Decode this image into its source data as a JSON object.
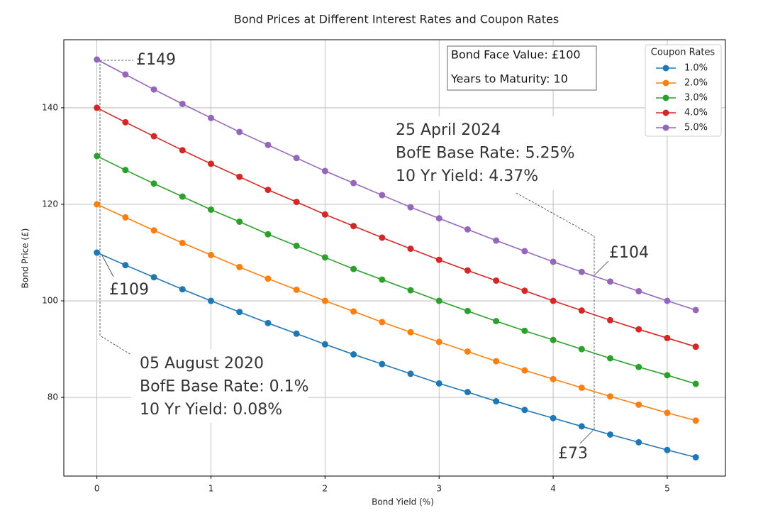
{
  "chart_data": {
    "type": "line",
    "title": "Bond Prices at Different Interest Rates and Coupon Rates",
    "xlabel": "Bond Yield  (%)",
    "ylabel": "Bond Price (£)",
    "x": [
      0,
      0.25,
      0.5,
      0.75,
      1,
      1.25,
      1.5,
      1.75,
      2,
      2.25,
      2.5,
      2.75,
      3,
      3.25,
      3.5,
      3.75,
      4,
      4.25,
      4.5,
      4.75,
      5,
      5.25
    ],
    "series": [
      {
        "name": "1.0%",
        "color": "#1f77b4",
        "values": [
          110,
          107.4,
          104.9,
          102.4,
          100.0,
          97.7,
          95.4,
          93.2,
          91.0,
          88.9,
          86.9,
          84.9,
          82.9,
          81.1,
          79.2,
          77.4,
          75.7,
          74.0,
          72.3,
          70.7,
          69.1,
          67.6
        ]
      },
      {
        "name": "2.0%",
        "color": "#ff7f0e",
        "values": [
          120,
          117.3,
          114.6,
          112.0,
          109.5,
          107.0,
          104.6,
          102.3,
          100.0,
          97.8,
          95.6,
          93.5,
          91.5,
          89.5,
          87.5,
          85.6,
          83.8,
          82.0,
          80.2,
          78.5,
          76.8,
          75.2
        ]
      },
      {
        "name": "3.0%",
        "color": "#2ca02c",
        "values": [
          130,
          127.1,
          124.3,
          121.6,
          118.9,
          116.4,
          113.8,
          111.4,
          109.0,
          106.6,
          104.4,
          102.2,
          100.0,
          97.9,
          95.8,
          93.8,
          91.9,
          90.0,
          88.1,
          86.3,
          84.6,
          82.8
        ]
      },
      {
        "name": "4.0%",
        "color": "#d62728",
        "values": [
          140,
          137.0,
          134.1,
          131.2,
          128.4,
          125.7,
          123.0,
          120.5,
          117.9,
          115.5,
          113.1,
          110.8,
          108.5,
          106.3,
          104.2,
          102.1,
          100.0,
          98.0,
          96.0,
          94.1,
          92.3,
          90.5
        ]
      },
      {
        "name": "5.0%",
        "color": "#9467bd",
        "values": [
          150,
          146.9,
          143.8,
          140.8,
          137.9,
          135.0,
          132.3,
          129.6,
          126.9,
          124.4,
          121.9,
          119.4,
          117.1,
          114.8,
          112.5,
          110.3,
          108.1,
          106.0,
          104.0,
          102.0,
          100.0,
          98.1
        ]
      }
    ],
    "xlim": [
      -0.29,
      5.51
    ],
    "ylim": [
      63.7,
      154.1
    ],
    "xticks": [
      0,
      1,
      2,
      3,
      4,
      5
    ],
    "yticks": [
      80,
      100,
      120,
      140
    ],
    "grid": true,
    "legend_title": "Coupon Rates",
    "legend_loc": "upper right",
    "info_box": [
      "Bond Face Value: £100",
      "Years to Maturity: 10"
    ],
    "price_labels": [
      "£149",
      "£109",
      "£104",
      "£73"
    ],
    "events": [
      [
        "05 August 2020",
        "BofE Base Rate: 0.1%",
        "10 Yr Yield: 0.08%"
      ],
      [
        "25 April 2024",
        "BofE Base Rate: 5.25%",
        "10 Yr Yield: 4.37%"
      ]
    ]
  }
}
